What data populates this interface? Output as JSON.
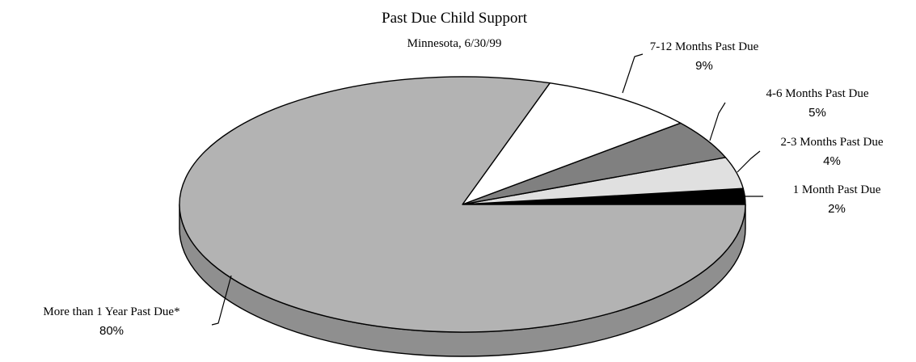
{
  "chart_data": {
    "type": "pie",
    "title": "Past Due Child Support",
    "subtitle": "Minnesota, 6/30/99",
    "style": "3d-exploded-tilted",
    "slices": [
      {
        "label": "1 Month Past Due",
        "value": 2,
        "display": "2%",
        "color": "#000000"
      },
      {
        "label": "2-3 Months Past Due",
        "value": 4,
        "display": "4%",
        "color": "#e0e0e0"
      },
      {
        "label": "4-6 Months Past Due",
        "value": 5,
        "display": "5%",
        "color": "#808080"
      },
      {
        "label": "7-12 Months Past Due",
        "value": 9,
        "display": "9%",
        "color": "#ffffff"
      },
      {
        "label": "More than 1 Year Past Due*",
        "value": 80,
        "display": "80%",
        "color": "#b3b3b3"
      }
    ],
    "side_color": "#8f8f8f",
    "outline_color": "#000000"
  }
}
